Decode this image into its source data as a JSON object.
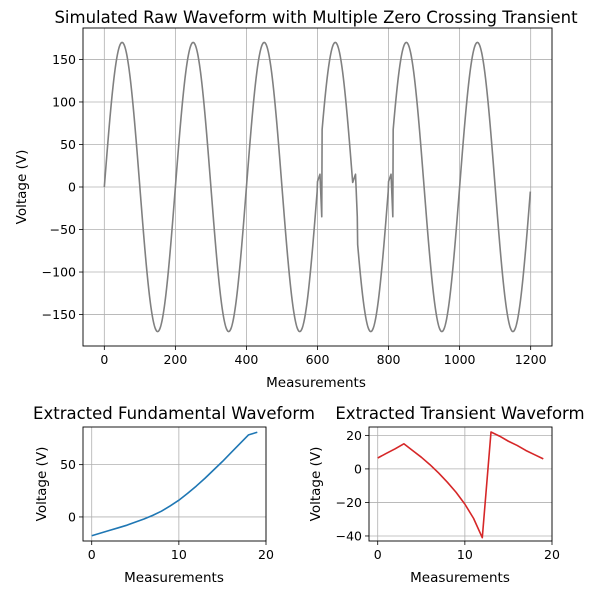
{
  "chart_data": [
    {
      "type": "line",
      "title": "Simulated Raw Waveform with Multiple Zero Crossing Transient",
      "xlabel": "Measurements",
      "ylabel": "Voltage (V)",
      "xlim": [
        -60,
        1260
      ],
      "ylim": [
        -187,
        187
      ],
      "xticks": [
        0,
        200,
        400,
        600,
        800,
        1000,
        1200
      ],
      "yticks": [
        -150,
        -100,
        -50,
        0,
        50,
        100,
        150
      ],
      "grid": true,
      "series": [
        {
          "color": "#808080",
          "generator": {
            "amplitude": 170,
            "period": 200,
            "x_start": 0,
            "x_end": 1199,
            "transient_windows": [
              {
                "x_start": 600,
                "x_end": 612,
                "values": [
                  6.4,
                  7.6,
                  8.9,
                  10.1,
                  11.3,
                  12.6,
                  13.8,
                  15.0,
                  5.0,
                  -5.0,
                  -15.0,
                  -25.0,
                  -35.0
                ]
              },
              {
                "x_start": 700,
                "x_end": 712,
                "values": [
                  6.4,
                  7.6,
                  8.9,
                  10.1,
                  11.3,
                  12.6,
                  13.8,
                  15.0,
                  5.0,
                  -5.0,
                  -15.0,
                  -25.0,
                  -35.0
                ]
              },
              {
                "x_start": 800,
                "x_end": 812,
                "values": [
                  6.4,
                  7.6,
                  8.9,
                  10.1,
                  11.3,
                  12.6,
                  13.8,
                  15.0,
                  5.0,
                  -5.0,
                  -15.0,
                  -25.0,
                  -35.0
                ]
              }
            ]
          }
        }
      ]
    },
    {
      "type": "line",
      "title": "Extracted Fundamental Waveform",
      "xlabel": "Measurements",
      "ylabel": "Voltage (V)",
      "xlim": [
        -1,
        20
      ],
      "ylim": [
        -23,
        86
      ],
      "xticks": [
        0,
        10,
        20
      ],
      "yticks": [
        0,
        50
      ],
      "grid": true,
      "series": [
        {
          "color": "#1f77b4",
          "x": [
            0,
            1,
            2,
            3,
            4,
            5,
            6,
            7,
            8,
            9,
            10,
            11,
            12,
            13,
            14,
            15,
            16,
            17,
            18,
            19
          ],
          "y": [
            -18,
            -15.5,
            -13,
            -10.5,
            -8,
            -5,
            -2,
            1.5,
            5.5,
            10.5,
            16,
            22.5,
            29.5,
            37,
            45,
            53,
            61.5,
            70,
            78.5,
            81
          ]
        }
      ]
    },
    {
      "type": "line",
      "title": "Extracted Transient Waveform",
      "xlabel": "Measurements",
      "ylabel": "Voltage (V)",
      "xlim": [
        -1,
        20
      ],
      "ylim": [
        -43,
        25
      ],
      "xticks": [
        0,
        10,
        20
      ],
      "yticks": [
        -40,
        -20,
        0,
        20
      ],
      "grid": true,
      "series": [
        {
          "color": "#d62728",
          "x": [
            0,
            1,
            2,
            3,
            4,
            5,
            6,
            7,
            8,
            9,
            10,
            11,
            12,
            13,
            14,
            15,
            16,
            17,
            18,
            19
          ],
          "y": [
            6.5,
            9.3,
            12,
            15,
            11,
            7,
            2.5,
            -2.5,
            -8,
            -14,
            -21,
            -29.5,
            -41,
            22,
            19.5,
            16.5,
            14,
            11,
            8.5,
            6
          ]
        }
      ]
    }
  ]
}
